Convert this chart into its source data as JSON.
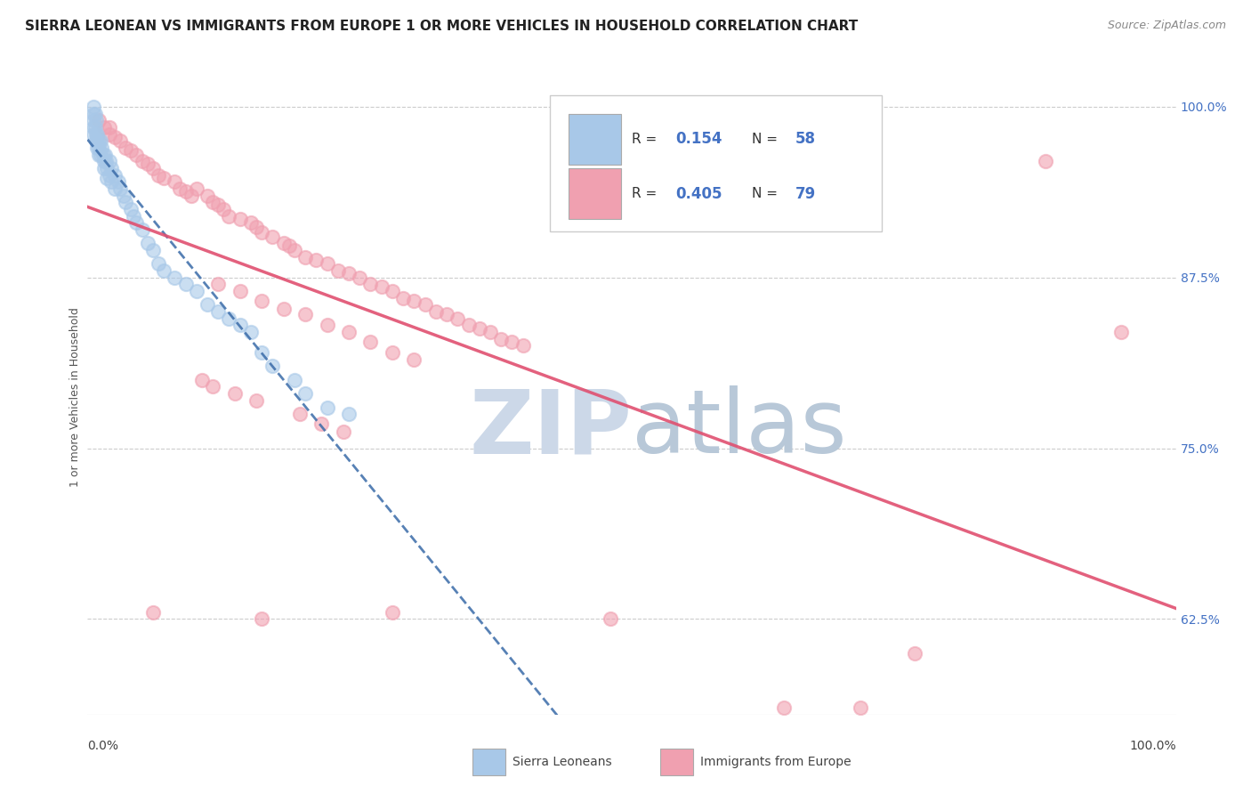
{
  "title": "SIERRA LEONEAN VS IMMIGRANTS FROM EUROPE 1 OR MORE VEHICLES IN HOUSEHOLD CORRELATION CHART",
  "source": "Source: ZipAtlas.com",
  "ylabel": "1 or more Vehicles in Household",
  "ytick_vals": [
    0.625,
    0.75,
    0.875,
    1.0
  ],
  "ytick_labels": [
    "62.5%",
    "75.0%",
    "87.5%",
    "100.0%"
  ],
  "xlim": [
    0.0,
    1.0
  ],
  "ylim": [
    0.555,
    1.02
  ],
  "legend_blue_R": "0.154",
  "legend_blue_N": "58",
  "legend_pink_R": "0.405",
  "legend_pink_N": "79",
  "blue_color": "#A8C8E8",
  "pink_color": "#F0A0B0",
  "blue_line_color": "#3A6BA8",
  "pink_line_color": "#E05070",
  "legend_label_blue": "Sierra Leoneans",
  "legend_label_pink": "Immigrants from Europe",
  "blue_x": [
    0.005,
    0.005,
    0.005,
    0.005,
    0.005,
    0.007,
    0.007,
    0.008,
    0.008,
    0.008,
    0.009,
    0.009,
    0.009,
    0.01,
    0.01,
    0.01,
    0.012,
    0.012,
    0.013,
    0.014,
    0.015,
    0.015,
    0.016,
    0.017,
    0.018,
    0.018,
    0.02,
    0.02,
    0.022,
    0.022,
    0.025,
    0.025,
    0.028,
    0.03,
    0.033,
    0.035,
    0.04,
    0.042,
    0.045,
    0.05,
    0.055,
    0.06,
    0.065,
    0.07,
    0.08,
    0.09,
    0.1,
    0.11,
    0.12,
    0.13,
    0.14,
    0.15,
    0.16,
    0.17,
    0.19,
    0.2,
    0.22,
    0.24
  ],
  "blue_y": [
    1.0,
    0.995,
    0.99,
    0.985,
    0.98,
    0.995,
    0.985,
    0.99,
    0.98,
    0.975,
    0.98,
    0.975,
    0.97,
    0.975,
    0.97,
    0.965,
    0.975,
    0.965,
    0.97,
    0.965,
    0.96,
    0.955,
    0.965,
    0.96,
    0.955,
    0.948,
    0.96,
    0.95,
    0.955,
    0.945,
    0.95,
    0.94,
    0.945,
    0.94,
    0.935,
    0.93,
    0.925,
    0.92,
    0.915,
    0.91,
    0.9,
    0.895,
    0.885,
    0.88,
    0.875,
    0.87,
    0.865,
    0.855,
    0.85,
    0.845,
    0.84,
    0.835,
    0.82,
    0.81,
    0.8,
    0.79,
    0.78,
    0.775
  ],
  "pink_x": [
    0.01,
    0.015,
    0.02,
    0.02,
    0.025,
    0.03,
    0.035,
    0.04,
    0.045,
    0.05,
    0.055,
    0.06,
    0.065,
    0.07,
    0.08,
    0.085,
    0.09,
    0.095,
    0.1,
    0.11,
    0.115,
    0.12,
    0.125,
    0.13,
    0.14,
    0.15,
    0.155,
    0.16,
    0.17,
    0.18,
    0.185,
    0.19,
    0.2,
    0.21,
    0.22,
    0.23,
    0.24,
    0.25,
    0.26,
    0.27,
    0.28,
    0.29,
    0.3,
    0.31,
    0.32,
    0.33,
    0.34,
    0.35,
    0.36,
    0.37,
    0.38,
    0.39,
    0.4,
    0.12,
    0.14,
    0.16,
    0.18,
    0.2,
    0.22,
    0.24,
    0.26,
    0.28,
    0.3,
    0.105,
    0.115,
    0.135,
    0.155,
    0.195,
    0.215,
    0.235,
    0.06,
    0.16,
    0.28,
    0.48,
    0.88,
    0.95,
    0.71,
    0.76,
    0.64
  ],
  "pink_y": [
    0.99,
    0.985,
    0.985,
    0.98,
    0.978,
    0.975,
    0.97,
    0.968,
    0.965,
    0.96,
    0.958,
    0.955,
    0.95,
    0.948,
    0.945,
    0.94,
    0.938,
    0.935,
    0.94,
    0.935,
    0.93,
    0.928,
    0.925,
    0.92,
    0.918,
    0.915,
    0.912,
    0.908,
    0.905,
    0.9,
    0.898,
    0.895,
    0.89,
    0.888,
    0.885,
    0.88,
    0.878,
    0.875,
    0.87,
    0.868,
    0.865,
    0.86,
    0.858,
    0.855,
    0.85,
    0.848,
    0.845,
    0.84,
    0.838,
    0.835,
    0.83,
    0.828,
    0.825,
    0.87,
    0.865,
    0.858,
    0.852,
    0.848,
    0.84,
    0.835,
    0.828,
    0.82,
    0.815,
    0.8,
    0.795,
    0.79,
    0.785,
    0.775,
    0.768,
    0.762,
    0.63,
    0.625,
    0.63,
    0.625,
    0.96,
    0.835,
    0.56,
    0.6,
    0.56
  ],
  "background_color": "#ffffff",
  "grid_color": "#cccccc",
  "title_fontsize": 11,
  "axis_fontsize": 9,
  "tick_fontsize": 10,
  "watermark_color": "#ccd8e8",
  "watermark_fontsize": 72
}
